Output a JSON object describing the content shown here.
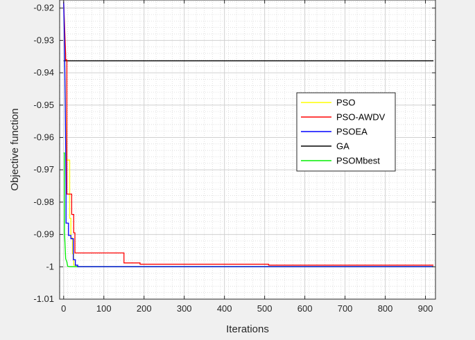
{
  "chart_data": {
    "type": "line",
    "title": "",
    "xlabel": "Iterations",
    "ylabel": "Objective function",
    "xlim": [
      -10,
      925
    ],
    "ylim": [
      -1.01,
      -0.9175
    ],
    "x_ticks": [
      0,
      100,
      200,
      300,
      400,
      500,
      600,
      700,
      800,
      900
    ],
    "x_tick_labels": [
      "0",
      "100",
      "200",
      "300",
      "400",
      "500",
      "600",
      "700",
      "800",
      "900"
    ],
    "y_ticks": [
      -0.92,
      -0.93,
      -0.94,
      -0.95,
      -0.96,
      -0.97,
      -0.98,
      -0.99,
      -1.0,
      -1.01
    ],
    "y_tick_labels": [
      "-0.92",
      "-0.93",
      "-0.94",
      "-0.95",
      "-0.96",
      "-0.97",
      "-0.98",
      "-0.99",
      "-1",
      "-1.01"
    ],
    "grid": true,
    "minor_grid": true,
    "legend_position": "center-right",
    "series": [
      {
        "name": "PSO",
        "color": "#ffff00",
        "x": [
          0,
          2,
          4,
          6,
          6,
          15,
          15,
          18,
          18,
          22,
          22,
          25,
          25,
          30,
          30,
          40,
          920
        ],
        "y": [
          -0.918,
          -0.93,
          -0.945,
          -0.965,
          -0.967,
          -0.967,
          -0.985,
          -0.985,
          -0.991,
          -0.991,
          -0.996,
          -0.996,
          -0.9995,
          -0.9995,
          -0.99995,
          -0.99995,
          -0.99995
        ]
      },
      {
        "name": "PSO-AWDV",
        "color": "#ff0000",
        "x": [
          0,
          3,
          5,
          5,
          8,
          8,
          20,
          20,
          25,
          25,
          28,
          28,
          150,
          150,
          190,
          190,
          510,
          510,
          920
        ],
        "y": [
          -0.918,
          -0.928,
          -0.9345,
          -0.936,
          -0.936,
          -0.9775,
          -0.9775,
          -0.9838,
          -0.9838,
          -0.9895,
          -0.9895,
          -0.9957,
          -0.9957,
          -0.9988,
          -0.9988,
          -0.9992,
          -0.9992,
          -0.9995,
          -0.9995
        ]
      },
      {
        "name": "PSOEA",
        "color": "#0000ff",
        "x": [
          0,
          2,
          4,
          6,
          6,
          12,
          12,
          18,
          18,
          24,
          24,
          29,
          29,
          35,
          35,
          920
        ],
        "y": [
          -0.918,
          -0.93,
          -0.95,
          -0.975,
          -0.9865,
          -0.9865,
          -0.9903,
          -0.9903,
          -0.9913,
          -0.9913,
          -0.9978,
          -0.9978,
          -0.9995,
          -0.9995,
          -0.99995,
          -0.99995
        ]
      },
      {
        "name": "GA",
        "color": "#000000",
        "x": [
          0,
          920
        ],
        "y": [
          -0.9363,
          -0.9363
        ]
      },
      {
        "name": "PSOMbest",
        "color": "#00ee00",
        "x": [
          0,
          2,
          2,
          5,
          8,
          10,
          15,
          20,
          920
        ],
        "y": [
          -0.9648,
          -0.9648,
          -0.989,
          -0.9975,
          -0.9985,
          -0.99985,
          -0.99995,
          -0.99995,
          -0.99995
        ]
      }
    ]
  }
}
